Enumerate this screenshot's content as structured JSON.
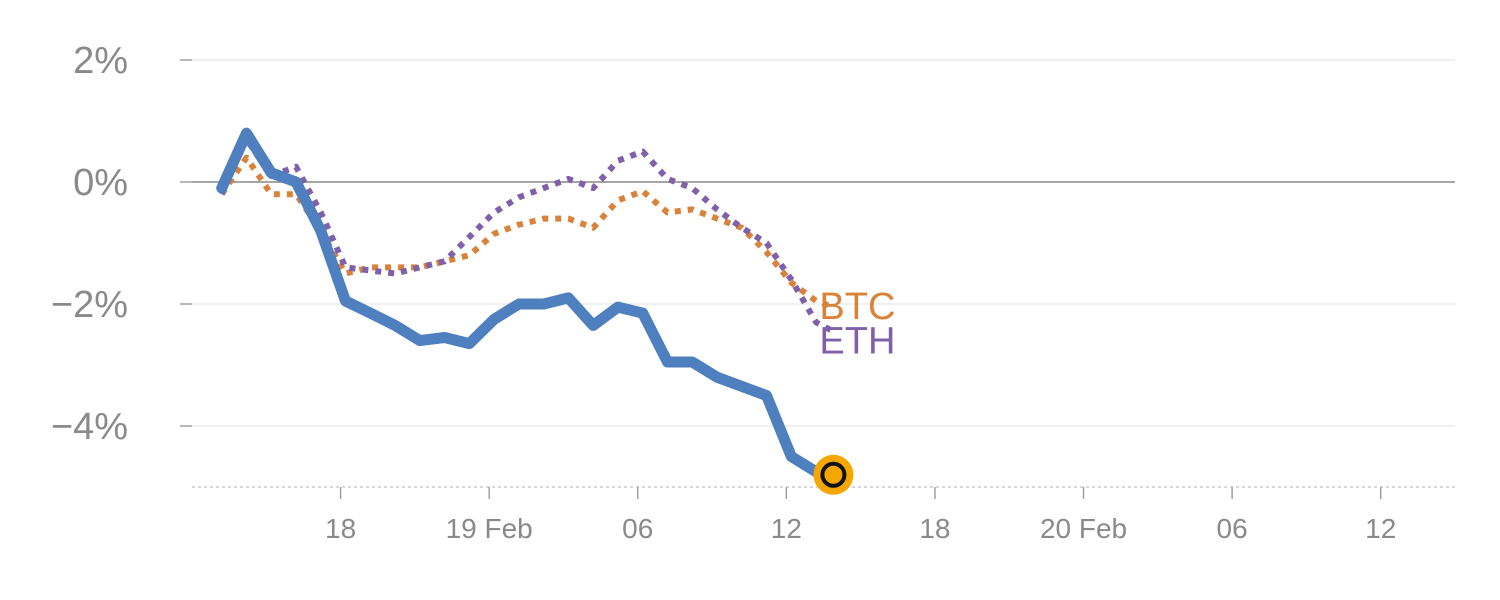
{
  "chart_data": {
    "type": "line",
    "x_unit": "hours",
    "xlim": [
      -3,
      48
    ],
    "ylim": [
      -5,
      2
    ],
    "grid": true,
    "zero_line": true,
    "yticks": [
      {
        "value": 2,
        "label": "2%"
      },
      {
        "value": 0,
        "label": "0%"
      },
      {
        "value": -2,
        "label": "−2%"
      },
      {
        "value": -4,
        "label": "−4%"
      }
    ],
    "xticks": [
      {
        "value": 3,
        "label": "18"
      },
      {
        "value": 9,
        "label": "19 Feb"
      },
      {
        "value": 15,
        "label": "06"
      },
      {
        "value": 21,
        "label": "12"
      },
      {
        "value": 27,
        "label": "18"
      },
      {
        "value": 33,
        "label": "20 Feb"
      },
      {
        "value": 39,
        "label": "06"
      },
      {
        "value": 45,
        "label": "12"
      }
    ],
    "colors": {
      "main": "#4e7fbf",
      "btc": "#d9823a",
      "eth": "#8060a8",
      "marker_fill": "#f5a700",
      "grid": "#e6e6e6",
      "zero": "#888888",
      "tick_text": "#8a8a8a"
    },
    "series": [
      {
        "key": "main",
        "style": "solid",
        "x": [
          -1.8,
          -0.8,
          0.2,
          1.2,
          2.2,
          3.2,
          4.2,
          5.2,
          6.2,
          7.2,
          8.2,
          9.2,
          10.2,
          11.2,
          12.2,
          13.2,
          14.2,
          15.2,
          16.2,
          17.2,
          18.2,
          19.2,
          20.2,
          21.2,
          22.2,
          22.9
        ],
        "values": [
          -0.1,
          0.8,
          0.15,
          0.0,
          -0.8,
          -1.95,
          -2.15,
          -2.35,
          -2.6,
          -2.55,
          -2.65,
          -2.25,
          -2.0,
          -2.0,
          -1.9,
          -2.35,
          -2.05,
          -2.15,
          -2.95,
          -2.95,
          -3.2,
          -3.35,
          -3.5,
          -4.5,
          -4.75,
          -4.8
        ]
      },
      {
        "key": "btc",
        "name": "BTC",
        "style": "dotted",
        "x": [
          -1.8,
          -0.8,
          0.2,
          1.2,
          2.2,
          3.2,
          4.2,
          5.2,
          6.2,
          7.2,
          8.2,
          9.2,
          10.2,
          11.2,
          12.2,
          13.2,
          14.2,
          15.2,
          16.2,
          17.2,
          18.2,
          19.2,
          20.2,
          21.2,
          22.2,
          22.9
        ],
        "values": [
          -0.2,
          0.4,
          -0.2,
          -0.2,
          -0.8,
          -1.5,
          -1.4,
          -1.4,
          -1.4,
          -1.3,
          -1.2,
          -0.85,
          -0.7,
          -0.6,
          -0.6,
          -0.75,
          -0.3,
          -0.15,
          -0.5,
          -0.45,
          -0.6,
          -0.75,
          -1.15,
          -1.65,
          -1.95,
          -2.05
        ]
      },
      {
        "key": "eth",
        "name": "ETH",
        "style": "dotted",
        "x": [
          -1.8,
          -0.8,
          0.2,
          1.2,
          2.2,
          3.2,
          4.2,
          5.2,
          6.2,
          7.2,
          8.2,
          9.2,
          10.2,
          11.2,
          12.2,
          13.2,
          14.2,
          15.2,
          16.2,
          17.2,
          18.2,
          19.2,
          20.2,
          21.2,
          22.2,
          22.9
        ],
        "values": [
          -0.2,
          0.7,
          0.1,
          0.25,
          -0.5,
          -1.4,
          -1.45,
          -1.5,
          -1.4,
          -1.3,
          -0.9,
          -0.5,
          -0.25,
          -0.1,
          0.05,
          -0.1,
          0.35,
          0.5,
          0.05,
          -0.1,
          -0.45,
          -0.75,
          -1.0,
          -1.6,
          -2.3,
          -2.45
        ]
      }
    ],
    "highlight_point": {
      "x": 22.9,
      "value": -4.8
    }
  }
}
